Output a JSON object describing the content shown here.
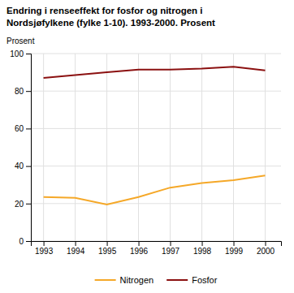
{
  "chart_data": {
    "type": "line",
    "title": "Endring i renseeffekt for fosfor og nitrogen i\nNordsjøfylkene (fylke 1-10). 1993-2000. Prosent",
    "y_label": "Prosent",
    "x": [
      1993,
      1994,
      1995,
      1996,
      1997,
      1998,
      1999,
      2000
    ],
    "series": [
      {
        "name": "Nitrogen",
        "color": "#F5A828",
        "values": [
          23.5,
          23.0,
          19.5,
          23.5,
          28.5,
          31.0,
          32.5,
          35.0
        ]
      },
      {
        "name": "Fosfor",
        "color": "#8B1010",
        "values": [
          87.0,
          88.5,
          90.0,
          91.5,
          91.5,
          92.0,
          93.0,
          91.0
        ]
      }
    ],
    "xlim": [
      1992.6,
      2000.5
    ],
    "xticks": [
      1993,
      1994,
      1995,
      1996,
      1997,
      1998,
      1999,
      2000
    ],
    "ylim": [
      0,
      100
    ],
    "yticks": [
      0,
      20,
      40,
      60,
      80,
      100
    ],
    "grid": true,
    "legend": "bottom"
  }
}
